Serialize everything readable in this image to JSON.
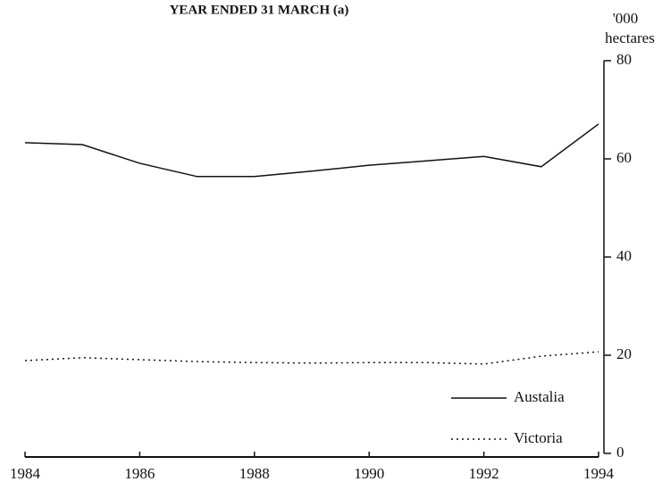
{
  "chart_data": {
    "type": "line",
    "title": "YEAR ENDED 31 MARCH (a)",
    "y_label": [
      "'000",
      "hectares"
    ],
    "x": [
      1984,
      1985,
      1986,
      1987,
      1988,
      1989,
      1990,
      1991,
      1992,
      1993,
      1994
    ],
    "series": [
      {
        "name": "Austalia",
        "color": "#111111",
        "style": "solid",
        "values": [
          63.3,
          62.9,
          59.1,
          56.4,
          56.4,
          57.5,
          58.7,
          59.6,
          60.5,
          58.4,
          67.1
        ]
      },
      {
        "name": "Victoria",
        "color": "#111111",
        "style": "dotted",
        "values": [
          18.9,
          19.5,
          19.1,
          18.7,
          18.5,
          18.4,
          18.5,
          18.5,
          18.2,
          19.8,
          20.7
        ]
      }
    ],
    "xlim": [
      1984,
      1994
    ],
    "xticks": [
      1984,
      1986,
      1988,
      1990,
      1992,
      1994
    ],
    "ylim": [
      0,
      80
    ],
    "yticks": [
      0,
      20,
      40,
      60,
      80
    ],
    "y_axis_side": "right",
    "legend": "lower right",
    "grid": false
  }
}
